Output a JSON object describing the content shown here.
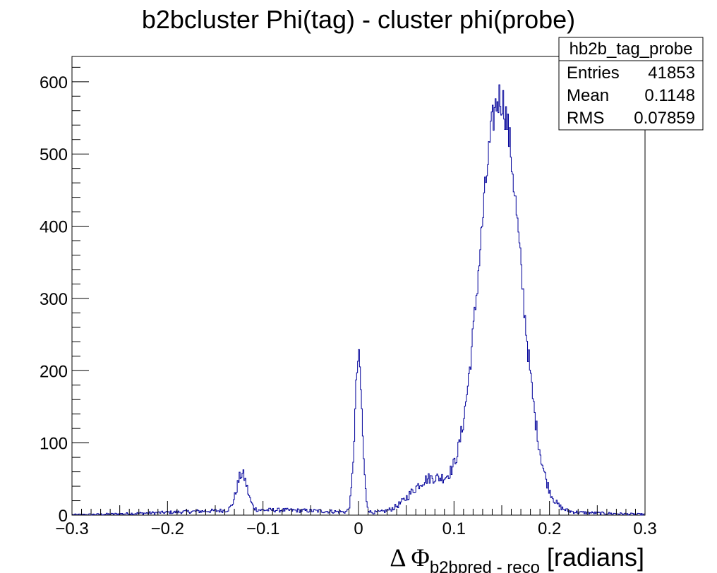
{
  "chart_data": {
    "type": "histogram",
    "title": "b2bcluster Phi(tag) - cluster phi(probe)",
    "xlabel_prefix": "Δ Φ",
    "xlabel_subscript": "b2bpred - reco",
    "xlabel_suffix": "[radians]",
    "xlim": [
      -0.3,
      0.3
    ],
    "ylim": [
      0,
      635
    ],
    "x_ticks": [
      "−0.3",
      "−0.2",
      "−0.1",
      "0",
      "0.1",
      "0.2",
      "0.3"
    ],
    "x_tick_values": [
      -0.3,
      -0.2,
      -0.1,
      0,
      0.1,
      0.2,
      0.3
    ],
    "y_ticks": [
      "0",
      "100",
      "200",
      "300",
      "400",
      "500",
      "600"
    ],
    "y_tick_values": [
      0,
      100,
      200,
      300,
      400,
      500,
      600
    ],
    "line_color": "#000099",
    "bins": 600,
    "components": [
      {
        "center": -0.122,
        "sigma": 0.0055,
        "amplitude": 50
      },
      {
        "center": 0.0,
        "sigma": 0.0038,
        "amplitude": 212
      },
      {
        "center": 0.075,
        "sigma": 0.02,
        "amplitude": 48
      },
      {
        "center": 0.148,
        "sigma": 0.0215,
        "amplitude": 575
      },
      {
        "center": -0.1,
        "sigma": 0.09,
        "amplitude": 7
      },
      {
        "center": 0.2,
        "sigma": 0.06,
        "amplitude": 4
      }
    ],
    "stats": {
      "name": "hb2b_tag_probe",
      "rows": [
        {
          "label": "Entries",
          "value": "41853"
        },
        {
          "label": "Mean",
          "value": "0.1148"
        },
        {
          "label": "RMS",
          "value": "0.07859"
        }
      ]
    }
  }
}
